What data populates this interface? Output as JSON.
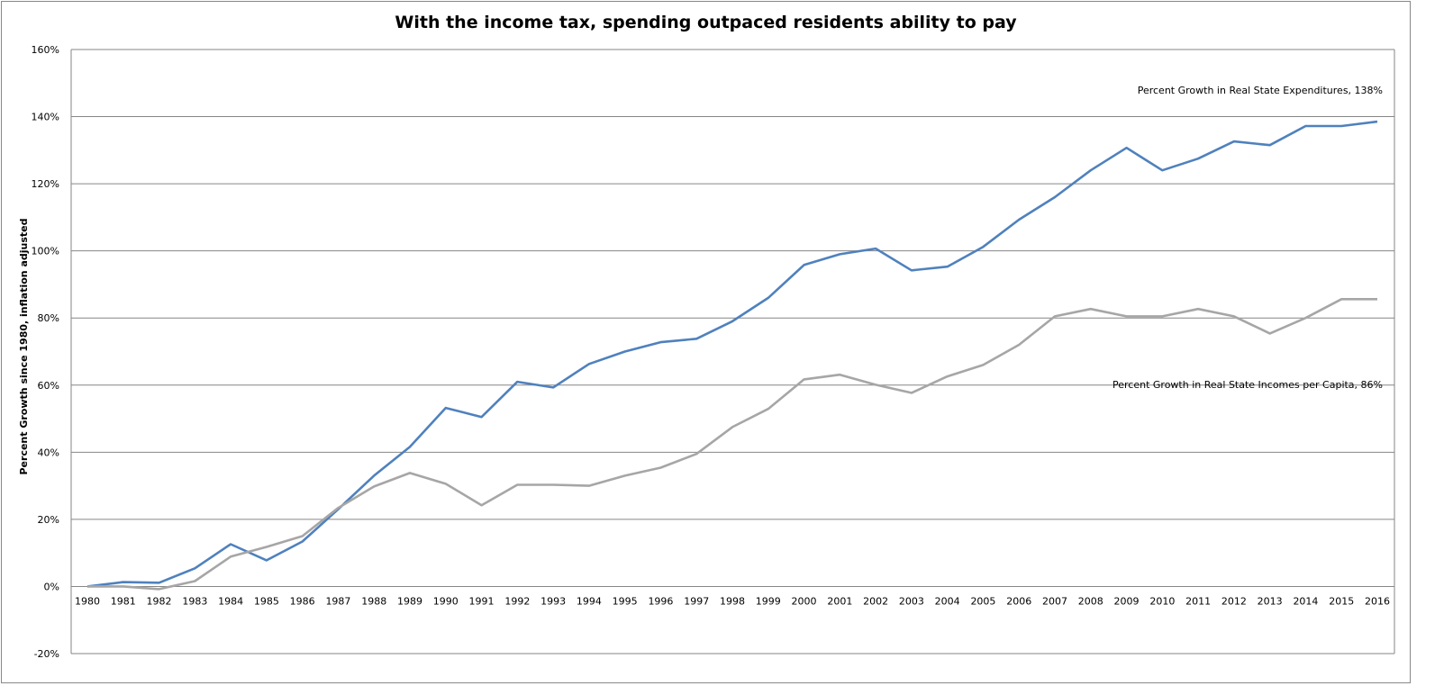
{
  "chart_data": {
    "type": "line",
    "title": "With the income tax, spending outpaced residents ability to pay",
    "xlabel": "",
    "ylabel": "Percent Growth since 1980, inflation adjusted",
    "ylim": [
      -20,
      160
    ],
    "yticks": [
      -20,
      0,
      20,
      40,
      60,
      80,
      100,
      120,
      140,
      160
    ],
    "ytick_labels": [
      "-20%",
      "0%",
      "20%",
      "40%",
      "60%",
      "80%",
      "100%",
      "120%",
      "140%",
      "160%"
    ],
    "grid": true,
    "legend": "none",
    "x": [
      "1980",
      "1981",
      "1982",
      "1983",
      "1984",
      "1985",
      "1986",
      "1987",
      "1988",
      "1989",
      "1990",
      "1991",
      "1992",
      "1993",
      "1994",
      "1995",
      "1996",
      "1997",
      "1998",
      "1999",
      "2000",
      "2001",
      "2002",
      "2003",
      "2004",
      "2005",
      "2006",
      "2007",
      "2008",
      "2009",
      "2010",
      "2011",
      "2012",
      "2013",
      "2014",
      "2015",
      "2016"
    ],
    "series": [
      {
        "color": "#4f81bd",
        "annotation": "Percent Growth  in Real State  Expenditures, 138%",
        "values": [
          0,
          1.3,
          1.1,
          5.4,
          12.6,
          7.8,
          13.4,
          23,
          33,
          41.6,
          53.2,
          50.5,
          61,
          59.3,
          66.3,
          70,
          72.8,
          73.8,
          79,
          86,
          95.8,
          99,
          100.7,
          94.2,
          95.3,
          101.2,
          109.3,
          116,
          124,
          130.7,
          124,
          127.5,
          132.6,
          131.5,
          137.2,
          137.2,
          138.5
        ]
      },
      {
        "color": "#a6a6a6",
        "annotation": "Percent Growth  in Real State  Incomes per Capita, 86%",
        "values": [
          0,
          0,
          -0.8,
          1.6,
          8.9,
          11.8,
          15,
          23.4,
          29.8,
          33.8,
          30.6,
          24.2,
          30.3,
          30.3,
          30,
          33,
          35.4,
          39.5,
          47.5,
          52.9,
          61.7,
          63.1,
          60.1,
          57.7,
          62.6,
          66,
          72,
          80.5,
          82.7,
          80.5,
          80.5,
          82.7,
          80.5,
          75.4,
          80,
          85.6,
          85.6
        ]
      }
    ]
  }
}
